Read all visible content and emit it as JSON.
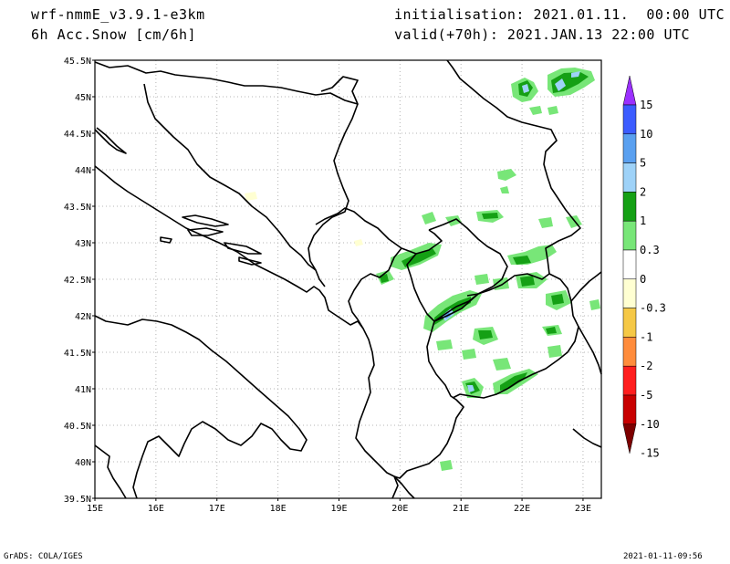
{
  "header": {
    "model": "wrf-nmmE_v3.9.1-e3km",
    "field": "6h Acc.Snow [cm/6h]",
    "init": "initialisation: 2021.01.11.  00:00 UTC",
    "valid": "valid(+70h): 2021.JAN.13 22:00 UTC"
  },
  "footer": {
    "left": "GrADS: COLA/IGES",
    "right": "2021-01-11-09:56"
  },
  "map": {
    "lat_labels": [
      "45.5N",
      "45N",
      "44.5N",
      "44N",
      "43.5N",
      "43N",
      "42.5N",
      "42N",
      "41.5N",
      "41N",
      "40.5N",
      "40N",
      "39.5N"
    ],
    "lon_labels": [
      "15E",
      "16E",
      "17E",
      "18E",
      "19E",
      "20E",
      "21E",
      "22E",
      "23E"
    ],
    "lat_range": [
      39.5,
      45.5
    ],
    "lon_range": [
      15.0,
      23.3
    ],
    "grid": true
  },
  "colorbar": {
    "labels": [
      "15",
      "10",
      "5",
      "2",
      "1",
      "0.3",
      "0",
      "-0.3",
      "-1",
      "-2",
      "-5",
      "-10",
      "-15"
    ],
    "colors": [
      "#9b30ff",
      "#3c5cff",
      "#5aa0f0",
      "#9ed2f8",
      "#15a015",
      "#78e678",
      "#ffffff",
      "#ffffd2",
      "#f5c846",
      "#ff8c3c",
      "#ff1e1e",
      "#c80000",
      "#7d0000"
    ],
    "top_arrow_color": "#9b30ff",
    "bottom_arrow_color": "#7d0000"
  }
}
